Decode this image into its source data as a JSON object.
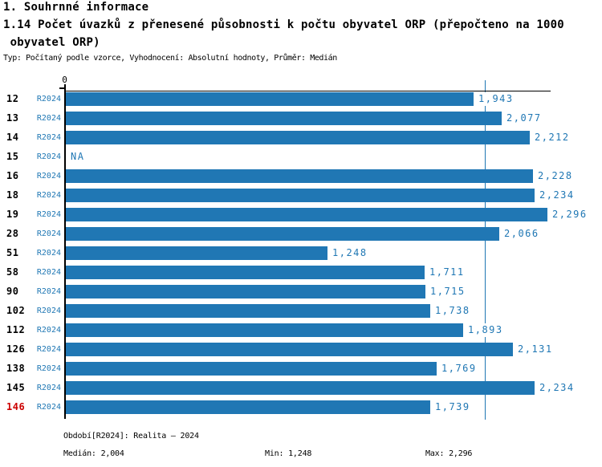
{
  "header": {
    "title": "1. Souhrnné informace",
    "subtitle_lines": [
      "1.14 Počet úvazků z přenesené působnosti k počtu obyvatel ORP (přepočteno na 1000",
      " obyvatel ORP)"
    ],
    "meta": "Typ: Počítaný podle vzorce, Vyhodnocení: Absolutní hodnoty, Průměr: Medián"
  },
  "chart_data": {
    "type": "bar",
    "orientation": "horizontal",
    "title": "1.14 Počet úvazků z přenesené působnosti k počtu obyvatel ORP (přepočteno na 1000 obyvatel ORP)",
    "axis_zero_label": "0",
    "series_name": "R2024",
    "xlim": [
      0,
      2316
    ],
    "median_value": 2004,
    "grid": false,
    "rows": [
      {
        "category": "12",
        "series": "R2024",
        "value": 1943,
        "label": "1,943",
        "red": false
      },
      {
        "category": "13",
        "series": "R2024",
        "value": 2077,
        "label": "2,077",
        "red": false
      },
      {
        "category": "14",
        "series": "R2024",
        "value": 2212,
        "label": "2,212",
        "red": false
      },
      {
        "category": "15",
        "series": "R2024",
        "value": null,
        "label": "NA",
        "red": false
      },
      {
        "category": "16",
        "series": "R2024",
        "value": 2228,
        "label": "2,228",
        "red": false
      },
      {
        "category": "18",
        "series": "R2024",
        "value": 2234,
        "label": "2,234",
        "red": false
      },
      {
        "category": "19",
        "series": "R2024",
        "value": 2296,
        "label": "2,296",
        "red": false
      },
      {
        "category": "28",
        "series": "R2024",
        "value": 2066,
        "label": "2,066",
        "red": false
      },
      {
        "category": "51",
        "series": "R2024",
        "value": 1248,
        "label": "1,248",
        "red": false
      },
      {
        "category": "58",
        "series": "R2024",
        "value": 1711,
        "label": "1,711",
        "red": false
      },
      {
        "category": "90",
        "series": "R2024",
        "value": 1715,
        "label": "1,715",
        "red": false
      },
      {
        "category": "102",
        "series": "R2024",
        "value": 1738,
        "label": "1,738",
        "red": false
      },
      {
        "category": "112",
        "series": "R2024",
        "value": 1893,
        "label": "1,893",
        "red": false
      },
      {
        "category": "126",
        "series": "R2024",
        "value": 2131,
        "label": "2,131",
        "red": false
      },
      {
        "category": "138",
        "series": "R2024",
        "value": 1769,
        "label": "1,769",
        "red": false
      },
      {
        "category": "145",
        "series": "R2024",
        "value": 2234,
        "label": "2,234",
        "red": false
      },
      {
        "category": "146",
        "series": "R2024",
        "value": 1739,
        "label": "1,739",
        "red": true
      }
    ],
    "colors": {
      "bar": "#2077b4",
      "median_line": "#1f77b4",
      "label_blue": "#1f77b4",
      "highlight_red": "#cc0000",
      "axis_black": "#000000"
    }
  },
  "footer": {
    "period": "Období[R2024]: Realita – 2024",
    "median_label": "Medián: 2,004",
    "min_label": "Min: 1,248",
    "max_label": "Max: 2,296"
  }
}
